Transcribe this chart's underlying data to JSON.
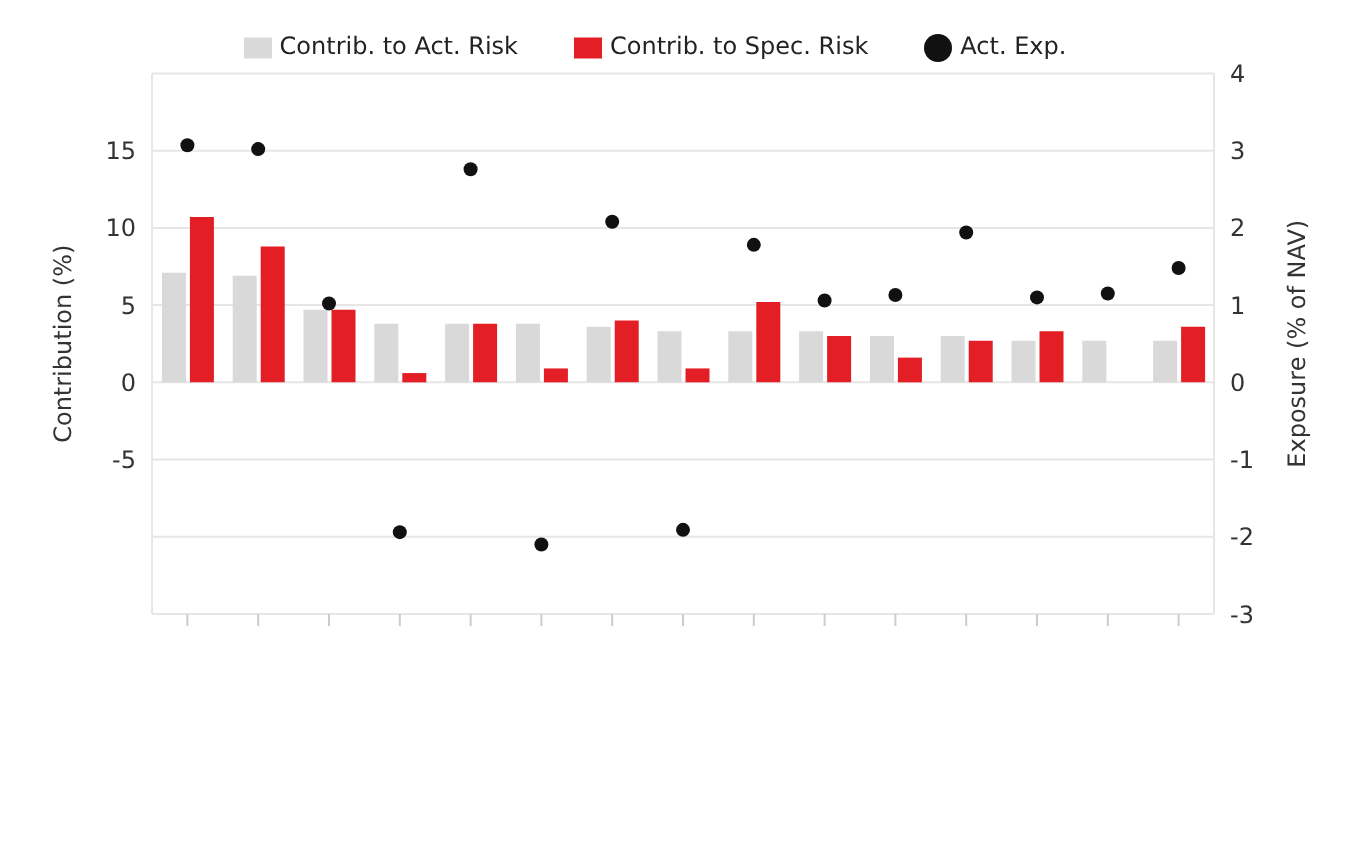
{
  "chart_data": {
    "type": "bar",
    "ylabel": "Contribution (%)",
    "y2label": "Exposure (% of NAV)",
    "categories": [
      null,
      null,
      null,
      null,
      null,
      null,
      null,
      null,
      null,
      null,
      null,
      null,
      null,
      null,
      null
    ],
    "series": [
      {
        "name": "Contrib. to Act. Risk",
        "color": "#d9d9d9",
        "values": [
          7.1,
          6.9,
          4.7,
          3.8,
          3.8,
          3.8,
          3.6,
          3.3,
          3.3,
          3.3,
          3.0,
          3.0,
          2.7,
          2.7,
          2.7
        ]
      },
      {
        "name": "Contrib. to Spec. Risk",
        "color": "#e31e24",
        "values": [
          10.7,
          8.8,
          4.7,
          0.6,
          3.8,
          0.9,
          4.0,
          0.9,
          5.2,
          3.0,
          1.6,
          2.7,
          3.3,
          null,
          3.6
        ]
      },
      {
        "name": "Act. Exp.",
        "type": "scatter",
        "axis": "y2",
        "color": "#111111",
        "values": [
          3.07,
          3.02,
          1.02,
          -1.94,
          2.76,
          -2.1,
          2.08,
          -1.91,
          1.78,
          1.06,
          1.13,
          1.94,
          1.1,
          1.15,
          1.48
        ]
      }
    ],
    "ylim": [
      -15,
      20
    ],
    "yticks": [
      {
        "value": -15,
        "label": null
      },
      {
        "value": -10,
        "label": null
      },
      -5,
      0,
      5,
      10,
      15,
      {
        "value": 20,
        "label": null
      }
    ],
    "y2lim": [
      -3,
      4
    ],
    "y2ticks": [
      -3,
      -2,
      -1,
      0,
      1,
      2,
      3,
      4
    ],
    "grid": "y",
    "legend": "top",
    "marker": "circle"
  }
}
